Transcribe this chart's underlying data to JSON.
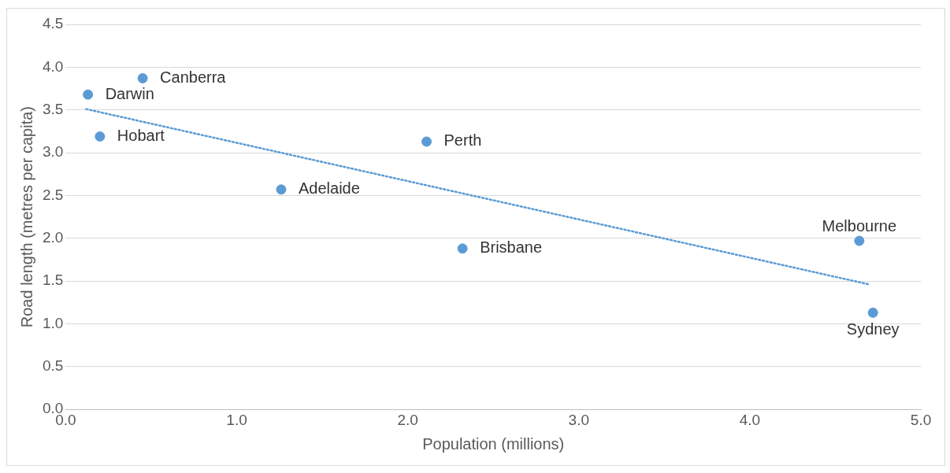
{
  "chart_data": {
    "type": "scatter",
    "xlabel": "Population (millions)",
    "ylabel": "Road length (metres per capita)",
    "xlim": [
      0,
      5
    ],
    "xticks": [
      {
        "value": 0,
        "label": "0.0"
      },
      {
        "value": 1,
        "label": "1.0"
      },
      {
        "value": 2,
        "label": "2.0"
      },
      {
        "value": 3,
        "label": "3.0"
      },
      {
        "value": 4,
        "label": "4.0"
      },
      {
        "value": 5,
        "label": "5.0"
      }
    ],
    "ylim": [
      0,
      4.5
    ],
    "yticks": [
      {
        "value": 0,
        "label": "0.0"
      },
      {
        "value": 0.5,
        "label": "0.5"
      },
      {
        "value": 1,
        "label": "1.0"
      },
      {
        "value": 1.5,
        "label": "1.5"
      },
      {
        "value": 2,
        "label": "2.0"
      },
      {
        "value": 2.5,
        "label": "2.5"
      },
      {
        "value": 3,
        "label": "3.0"
      },
      {
        "value": 3.5,
        "label": "3.5"
      },
      {
        "value": 4,
        "label": "4.0"
      },
      {
        "value": 4.5,
        "label": "4.5"
      }
    ],
    "grid": "y",
    "legend": false,
    "marker": "circle",
    "series": [
      {
        "color": "#5b9bd5",
        "x": [
          0.13,
          0.45,
          0.2,
          1.26,
          2.11,
          2.32,
          4.64,
          4.72
        ],
        "values": [
          3.68,
          3.87,
          3.19,
          2.57,
          3.13,
          1.88,
          1.97,
          1.13
        ]
      },
      {
        "type": "line",
        "color": "#5b9bd5",
        "line_style": "dotted",
        "marker": "none",
        "x": [
          0.12,
          4.7
        ],
        "values": [
          3.51,
          1.46
        ]
      }
    ],
    "annotations": [
      {
        "text": "Darwin",
        "x": 0.13,
        "y": 3.68
      },
      {
        "text": "Canberra",
        "x": 0.45,
        "y": 3.87
      },
      {
        "text": "Hobart",
        "x": 0.2,
        "y": 3.19
      },
      {
        "text": "Adelaide",
        "x": 1.26,
        "y": 2.57
      },
      {
        "text": "Perth",
        "x": 2.11,
        "y": 3.13
      },
      {
        "text": "Brisbane",
        "x": 2.32,
        "y": 1.88
      },
      {
        "text": "Melbourne",
        "x": 4.64,
        "y": 1.97
      },
      {
        "text": "Sydney",
        "x": 4.72,
        "y": 1.13
      }
    ]
  }
}
